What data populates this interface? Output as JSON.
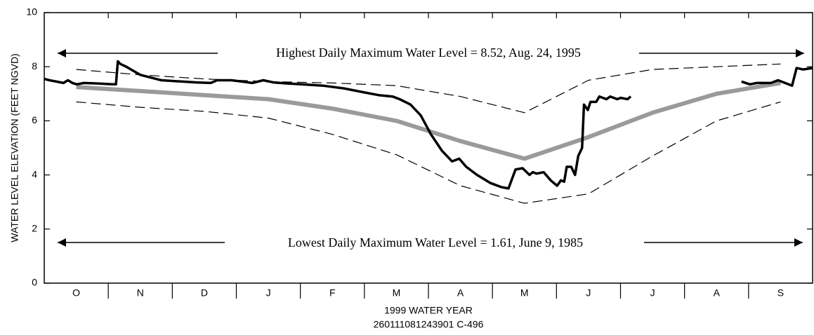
{
  "chart_data": {
    "type": "line",
    "ylabel": "WATER LEVEL ELEVATION (FEET NGVD)",
    "xlabel": "1999 WATER YEAR",
    "subtitle": "260111081243901 C-496",
    "annotations": [
      "Highest Daily Maximum Water Level = 8.52, Aug. 24, 1995",
      "Lowest Daily Maximum Water Level = 1.61, June 9, 1985"
    ],
    "categories": [
      "O",
      "N",
      "D",
      "J",
      "F",
      "M",
      "A",
      "M",
      "J",
      "J",
      "A",
      "S"
    ],
    "xlim": [
      0,
      12
    ],
    "ylim": [
      0,
      10
    ],
    "yticks": [
      0,
      2,
      4,
      6,
      8,
      10
    ],
    "series": [
      {
        "color": "#9a9a9a",
        "width": 6,
        "dash": false,
        "x": [
          0.5,
          1.5,
          2.5,
          3.5,
          4.5,
          5.5,
          6.5,
          7.5,
          8.5,
          9.5,
          10.5,
          11.5
        ],
        "values": [
          7.25,
          7.1,
          6.95,
          6.8,
          6.45,
          6.0,
          5.25,
          4.6,
          5.4,
          6.3,
          7.0,
          7.4
        ]
      },
      {
        "color": "#000000",
        "width": 1.2,
        "dash": true,
        "x": [
          0.5,
          1.5,
          2.5,
          3.5,
          4.5,
          5.5,
          6.5,
          7.5,
          8.5,
          9.5,
          10.5,
          11.5
        ],
        "values": [
          7.9,
          7.7,
          7.55,
          7.45,
          7.4,
          7.3,
          6.9,
          6.3,
          7.5,
          7.9,
          8.0,
          8.1
        ]
      },
      {
        "color": "#000000",
        "width": 1.2,
        "dash": true,
        "x": [
          0.5,
          1.5,
          2.5,
          3.5,
          4.5,
          5.5,
          6.5,
          7.5,
          8.5,
          9.5,
          10.5,
          11.5
        ],
        "values": [
          6.7,
          6.5,
          6.35,
          6.1,
          5.5,
          4.75,
          3.6,
          2.95,
          3.3,
          4.7,
          6.0,
          6.7
        ]
      },
      {
        "color": "#000000",
        "width": 3.5,
        "dash": false,
        "x": [
          0,
          0.08,
          0.19,
          0.3,
          0.37,
          0.44,
          0.51,
          0.62,
          0.84,
          1.06,
          1.12,
          1.15,
          1.19,
          1.28,
          1.39,
          1.5,
          1.66,
          1.83,
          2.16,
          2.38,
          2.6,
          2.7,
          2.92,
          3.09,
          3.25,
          3.42,
          3.58,
          3.8,
          4.02,
          4.35,
          4.68,
          5.0,
          5.22,
          5.44,
          5.55,
          5.72,
          5.88,
          6.04,
          6.21,
          6.37,
          6.48,
          6.59,
          6.76,
          6.97,
          7.14,
          7.25,
          7.36,
          7.47,
          7.58,
          7.63,
          7.69,
          7.8,
          7.91,
          8.01,
          8.07,
          8.12,
          8.16,
          8.23,
          8.29,
          8.34,
          8.4,
          8.43,
          8.49,
          8.53,
          8.62,
          8.67,
          8.78,
          8.84,
          8.95,
          9.0,
          9.11,
          9.16,
          10.0,
          10.89,
          11.02,
          11.13,
          11.35,
          11.46,
          11.57,
          11.68,
          11.75,
          11.85,
          12.0
        ],
        "values": [
          7.55,
          7.5,
          7.45,
          7.4,
          7.5,
          7.4,
          7.35,
          7.4,
          7.38,
          7.35,
          7.35,
          8.2,
          8.1,
          8.0,
          7.85,
          7.7,
          7.6,
          7.5,
          7.45,
          7.42,
          7.4,
          7.5,
          7.5,
          7.45,
          7.4,
          7.5,
          7.42,
          7.38,
          7.35,
          7.3,
          7.2,
          7.05,
          6.95,
          6.9,
          6.8,
          6.6,
          6.2,
          5.5,
          4.9,
          4.5,
          4.6,
          4.3,
          4.0,
          3.7,
          3.55,
          3.5,
          4.2,
          4.25,
          4.0,
          4.1,
          4.05,
          4.1,
          3.8,
          3.6,
          3.8,
          3.75,
          4.3,
          4.3,
          4.0,
          4.7,
          5.0,
          6.6,
          6.4,
          6.7,
          6.7,
          6.9,
          6.8,
          6.9,
          6.8,
          6.85,
          6.8,
          6.9,
          null,
          7.45,
          7.35,
          7.4,
          7.4,
          7.5,
          7.4,
          7.3,
          7.95,
          7.9,
          7.95
        ]
      }
    ]
  }
}
